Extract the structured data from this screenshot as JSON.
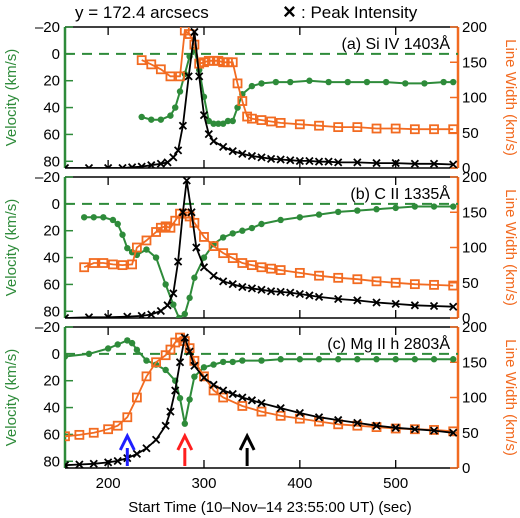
{
  "header": {
    "position_label": "y = 172.4 arcsecs",
    "peak_marker": "×",
    "peak_label": ": Peak Intensity"
  },
  "xaxis": {
    "label": "Start Time (10–Nov–14 23:55:00 UT)  (sec)",
    "range": [
      155,
      565
    ],
    "ticks": [
      200,
      300,
      400,
      500
    ],
    "tick_labels": [
      "200",
      "300",
      "400",
      "500"
    ]
  },
  "colors": {
    "velocity": "#2e8b3a",
    "line_width": "#f26b21",
    "intensity": "#000000",
    "arrow_blue": "#1f1fff",
    "arrow_red": "#ff1f1f",
    "arrow_black": "#000000"
  },
  "arrows": [
    {
      "x": 220,
      "color": "blue"
    },
    {
      "x": 280,
      "color": "red"
    },
    {
      "x": 345,
      "color": "black"
    }
  ],
  "chart_data": [
    {
      "type": "line",
      "title": "(a) Si IV 1403Å",
      "ylabel_left": "Velocity (km/s)",
      "ylabel_right": "Line Width (km/s)",
      "ylim_left": [
        85,
        -20
      ],
      "ylim_right": [
        0,
        200
      ],
      "yticks_left": [
        -20,
        0,
        20,
        40,
        60,
        80
      ],
      "yticks_right": [
        0,
        50,
        100,
        150,
        200
      ],
      "reference_line_velocity": 0,
      "grid": false,
      "series": [
        {
          "axis": "left",
          "marker": "dot",
          "color": "velocity",
          "x": [
            235,
            245,
            255,
            265,
            270,
            275,
            280,
            285,
            290,
            295,
            300,
            305,
            310,
            315,
            320,
            325,
            330,
            335,
            340,
            350,
            360,
            375,
            390,
            410,
            430,
            450,
            470,
            490,
            510,
            530,
            550,
            560
          ],
          "values": [
            47,
            49,
            49,
            46,
            40,
            28,
            15,
            2,
            -3,
            12,
            32,
            50,
            52,
            52,
            52,
            50,
            50,
            40,
            30,
            24,
            22,
            21,
            21,
            20,
            21,
            21,
            21,
            21,
            22,
            22,
            21,
            21
          ]
        },
        {
          "axis": "right",
          "marker": "square",
          "color": "line_width",
          "x": [
            235,
            245,
            255,
            265,
            275,
            280,
            285,
            290,
            295,
            300,
            305,
            310,
            315,
            320,
            325,
            330,
            335,
            340,
            345,
            350,
            360,
            370,
            380,
            400,
            420,
            440,
            460,
            480,
            500,
            520,
            540,
            560
          ],
          "values": [
            153,
            147,
            140,
            130,
            130,
            195,
            190,
            175,
            148,
            150,
            152,
            152,
            152,
            150,
            150,
            150,
            120,
            95,
            73,
            70,
            68,
            66,
            64,
            62,
            60,
            58,
            58,
            56,
            56,
            55,
            55,
            55
          ]
        },
        {
          "axis": "right",
          "marker": "cross",
          "color": "intensity",
          "x": [
            155,
            180,
            200,
            215,
            225,
            235,
            245,
            255,
            262,
            268,
            273,
            278,
            284,
            290,
            295,
            300,
            305,
            310,
            320,
            330,
            340,
            350,
            360,
            370,
            380,
            390,
            400,
            410,
            420,
            430,
            440,
            460,
            480,
            500,
            520,
            540,
            560
          ],
          "values": [
            0,
            0,
            0,
            0,
            1,
            2,
            4,
            6,
            8,
            15,
            25,
            60,
            130,
            193,
            130,
            75,
            48,
            38,
            30,
            24,
            20,
            17,
            15,
            13,
            12,
            11,
            10,
            10,
            9,
            9,
            8,
            8,
            7,
            7,
            6,
            6,
            5
          ]
        }
      ]
    },
    {
      "type": "line",
      "title": "(b) C II 1335Å",
      "ylabel_left": "Velocity (km/s)",
      "ylabel_right": "Line Width (km/s)",
      "ylim_left": [
        85,
        -20
      ],
      "ylim_right": [
        0,
        200
      ],
      "yticks_left": [
        -20,
        0,
        20,
        40,
        60,
        80
      ],
      "yticks_right": [
        0,
        50,
        100,
        150,
        200
      ],
      "reference_line_velocity": 0,
      "grid": false,
      "series": [
        {
          "axis": "left",
          "marker": "dot",
          "color": "velocity",
          "x": [
            175,
            185,
            195,
            205,
            210,
            215,
            220,
            225,
            230,
            240,
            250,
            260,
            268,
            274,
            280,
            285,
            290,
            300,
            310,
            320,
            330,
            340,
            350,
            360,
            380,
            400,
            420,
            440,
            460,
            480,
            500,
            520,
            540,
            560
          ],
          "values": [
            10,
            10,
            10,
            12,
            15,
            23,
            33,
            36,
            38,
            34,
            40,
            60,
            75,
            85,
            82,
            70,
            55,
            40,
            30,
            25,
            22,
            20,
            18,
            15,
            12,
            10,
            8,
            6,
            5,
            4,
            3,
            2,
            2,
            2
          ]
        },
        {
          "axis": "right",
          "marker": "square",
          "color": "line_width",
          "x": [
            175,
            185,
            195,
            205,
            215,
            225,
            230,
            240,
            250,
            255,
            260,
            265,
            270,
            275,
            280,
            285,
            290,
            300,
            310,
            320,
            330,
            340,
            350,
            360,
            370,
            380,
            400,
            420,
            440,
            460,
            480,
            500,
            520,
            540,
            560
          ],
          "values": [
            72,
            78,
            78,
            76,
            75,
            76,
            100,
            110,
            122,
            128,
            130,
            128,
            138,
            148,
            148,
            144,
            135,
            115,
            102,
            92,
            85,
            78,
            75,
            72,
            70,
            68,
            64,
            60,
            57,
            55,
            52,
            50,
            48,
            47,
            46
          ]
        },
        {
          "axis": "right",
          "marker": "cross",
          "color": "intensity",
          "x": [
            155,
            180,
            200,
            220,
            235,
            245,
            255,
            262,
            268,
            273,
            278,
            282,
            287,
            292,
            300,
            310,
            320,
            330,
            340,
            350,
            360,
            370,
            380,
            390,
            400,
            410,
            420,
            440,
            460,
            480,
            500,
            520,
            540,
            560
          ],
          "values": [
            0,
            1,
            1,
            2,
            3,
            5,
            10,
            18,
            35,
            80,
            150,
            195,
            150,
            100,
            72,
            60,
            52,
            48,
            44,
            42,
            40,
            38,
            37,
            36,
            34,
            32,
            30,
            27,
            25,
            22,
            20,
            18,
            17,
            16
          ]
        }
      ]
    },
    {
      "type": "line",
      "title": "(c) Mg II h 2803Å",
      "ylabel_left": "Velocity (km/s)",
      "ylabel_right": "Line Width (km/s)",
      "ylim_left": [
        85,
        -20
      ],
      "ylim_right": [
        0,
        200
      ],
      "yticks_left": [
        -20,
        0,
        20,
        40,
        60,
        80
      ],
      "yticks_right": [
        0,
        50,
        100,
        150,
        200
      ],
      "reference_line_velocity": 0,
      "grid": false,
      "series": [
        {
          "axis": "left",
          "marker": "dot",
          "color": "velocity",
          "x": [
            155,
            180,
            200,
            210,
            220,
            225,
            230,
            240,
            250,
            260,
            270,
            275,
            280,
            285,
            290,
            300,
            310,
            320,
            330,
            340,
            360,
            380,
            400,
            420,
            440,
            460,
            480,
            500,
            520,
            540,
            560
          ],
          "values": [
            2,
            0,
            -4,
            -7,
            -10,
            -8,
            -3,
            5,
            8,
            12,
            20,
            33,
            52,
            34,
            17,
            10,
            8,
            6,
            6,
            5,
            5,
            4,
            4,
            4,
            4,
            4,
            4,
            4,
            4,
            4,
            4
          ]
        },
        {
          "axis": "right",
          "marker": "square",
          "color": "line_width",
          "x": [
            155,
            170,
            185,
            200,
            210,
            220,
            230,
            240,
            250,
            260,
            265,
            270,
            275,
            280,
            285,
            290,
            300,
            310,
            320,
            340,
            360,
            380,
            400,
            420,
            440,
            460,
            480,
            500,
            520,
            540,
            560
          ],
          "values": [
            45,
            47,
            50,
            55,
            60,
            72,
            100,
            130,
            150,
            160,
            168,
            178,
            185,
            180,
            170,
            152,
            130,
            110,
            100,
            88,
            80,
            74,
            70,
            66,
            62,
            60,
            58,
            56,
            55,
            54,
            52
          ]
        },
        {
          "axis": "right",
          "marker": "cross",
          "color": "intensity",
          "x": [
            155,
            170,
            185,
            200,
            210,
            220,
            230,
            240,
            250,
            260,
            265,
            270,
            275,
            280,
            285,
            290,
            300,
            310,
            320,
            330,
            340,
            350,
            360,
            380,
            400,
            420,
            440,
            460,
            480,
            500,
            520,
            540,
            560
          ],
          "values": [
            4,
            5,
            6,
            8,
            10,
            14,
            20,
            28,
            40,
            60,
            80,
            110,
            150,
            185,
            165,
            145,
            128,
            118,
            110,
            105,
            100,
            96,
            92,
            85,
            78,
            72,
            68,
            64,
            60,
            57,
            55,
            53,
            50
          ]
        }
      ]
    }
  ]
}
